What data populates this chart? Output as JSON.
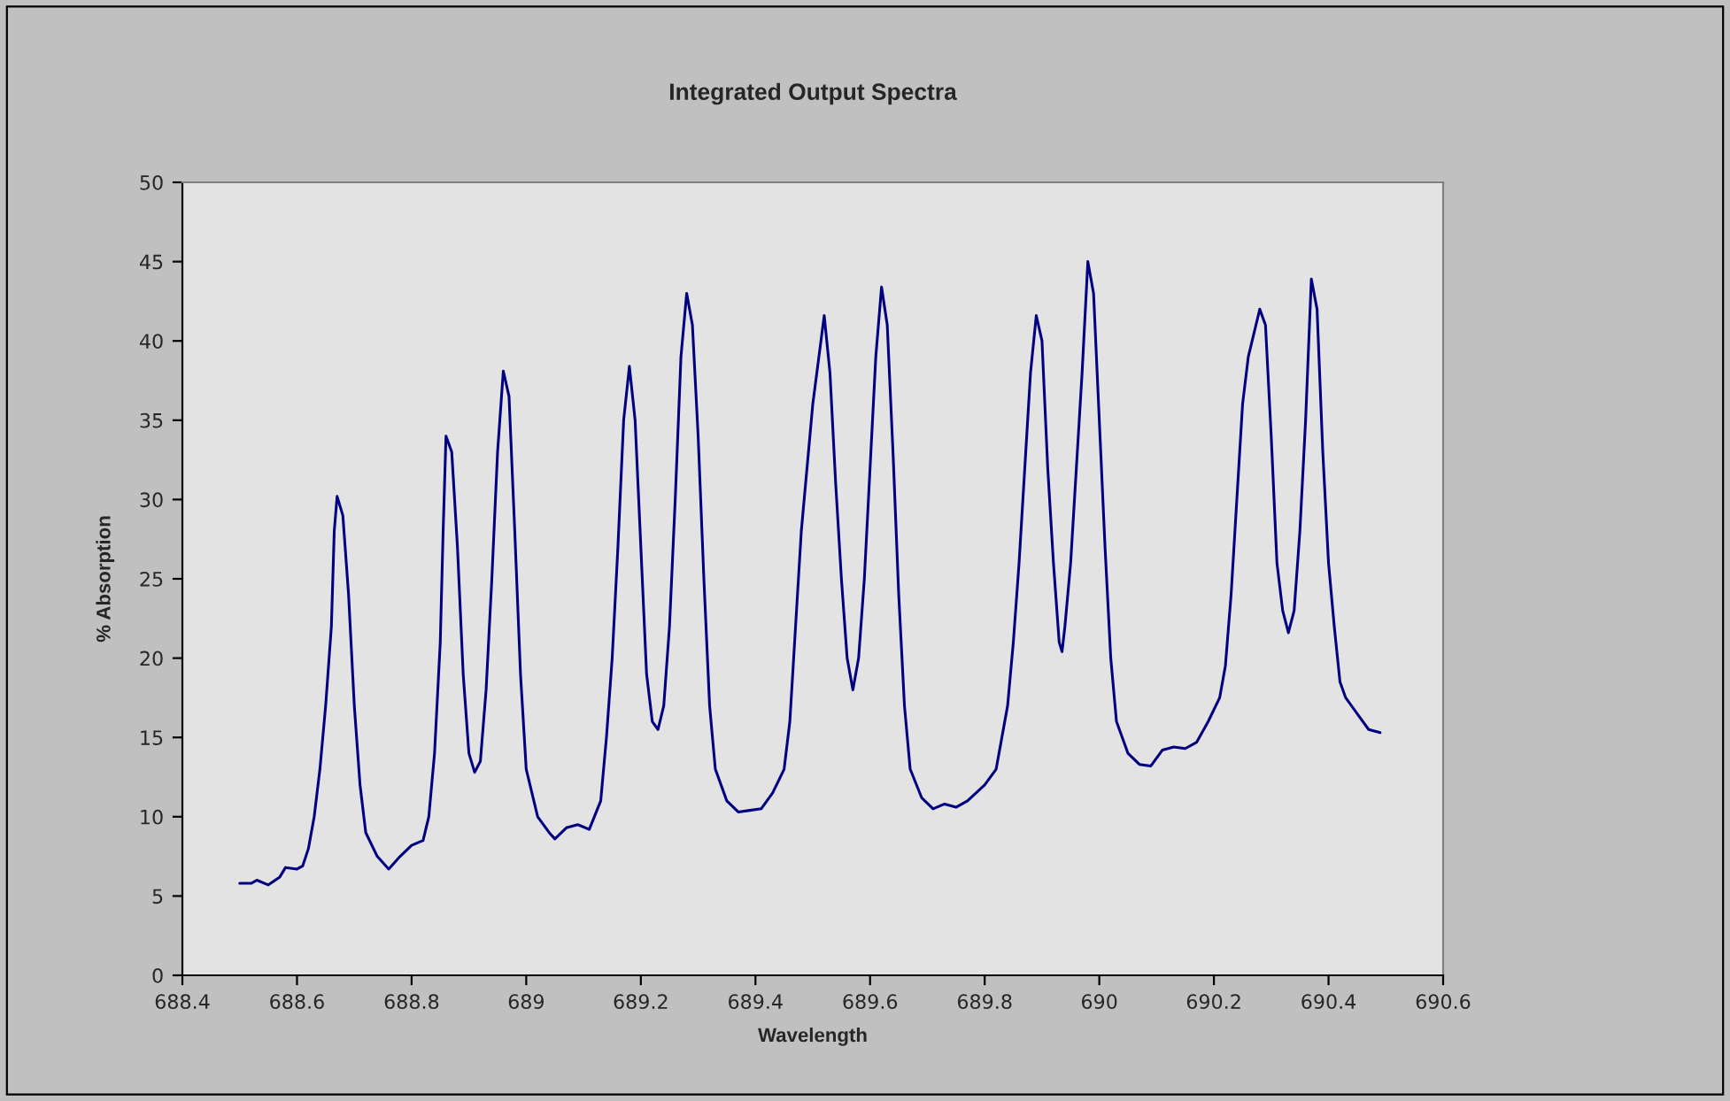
{
  "chart_data": {
    "type": "line",
    "title": "Integrated Output Spectra",
    "xlabel": "Wavelength",
    "ylabel": "% Absorption",
    "x": [
      688.5,
      688.52,
      688.53,
      688.55,
      688.57,
      688.58,
      688.6,
      688.61,
      688.62,
      688.63,
      688.64,
      688.65,
      688.66,
      688.665,
      688.67,
      688.68,
      688.69,
      688.7,
      688.71,
      688.72,
      688.74,
      688.76,
      688.78,
      688.8,
      688.82,
      688.83,
      688.84,
      688.85,
      688.855,
      688.86,
      688.87,
      688.88,
      688.89,
      688.9,
      688.91,
      688.92,
      688.93,
      688.94,
      688.95,
      688.96,
      688.97,
      688.98,
      688.99,
      689.0,
      689.02,
      689.04,
      689.05,
      689.07,
      689.09,
      689.11,
      689.13,
      689.14,
      689.15,
      689.16,
      689.17,
      689.18,
      689.19,
      689.2,
      689.21,
      689.22,
      689.23,
      689.24,
      689.25,
      689.26,
      689.27,
      689.28,
      689.29,
      689.3,
      689.31,
      689.32,
      689.33,
      689.35,
      689.37,
      689.39,
      689.41,
      689.43,
      689.45,
      689.46,
      689.47,
      689.48,
      689.5,
      689.52,
      689.53,
      689.54,
      689.55,
      689.56,
      689.57,
      689.58,
      689.59,
      689.6,
      689.61,
      689.62,
      689.63,
      689.64,
      689.65,
      689.66,
      689.67,
      689.69,
      689.71,
      689.73,
      689.75,
      689.77,
      689.8,
      689.82,
      689.84,
      689.85,
      689.86,
      689.87,
      689.88,
      689.89,
      689.9,
      689.91,
      689.92,
      689.93,
      689.935,
      689.94,
      689.95,
      689.96,
      689.97,
      689.98,
      689.99,
      690.0,
      690.01,
      690.02,
      690.03,
      690.05,
      690.07,
      690.09,
      690.11,
      690.13,
      690.15,
      690.17,
      690.19,
      690.21,
      690.22,
      690.23,
      690.24,
      690.25,
      690.26,
      690.28,
      690.29,
      690.3,
      690.31,
      690.32,
      690.33,
      690.34,
      690.35,
      690.36,
      690.37,
      690.38,
      690.39,
      690.4,
      690.41,
      690.42,
      690.43,
      690.45,
      690.47,
      690.49
    ],
    "series": [
      {
        "color": "#000080",
        "values": [
          5.8,
          5.8,
          6.0,
          5.7,
          6.2,
          6.8,
          6.7,
          6.9,
          8.0,
          10,
          13,
          17,
          22,
          28,
          30.2,
          29,
          24,
          17,
          12,
          9,
          7.5,
          6.7,
          7.5,
          8.2,
          8.5,
          10,
          14,
          21,
          28,
          34,
          33,
          27,
          19,
          14,
          12.8,
          13.5,
          18,
          25,
          33,
          38.1,
          36.5,
          28,
          19,
          13,
          10,
          9,
          8.6,
          9.3,
          9.5,
          9.2,
          11,
          15,
          20,
          27,
          35,
          38.4,
          35,
          27,
          19,
          16,
          15.5,
          17,
          22,
          30,
          39,
          43,
          41,
          34,
          25,
          17,
          13,
          11,
          10.3,
          10.4,
          10.5,
          11.5,
          13,
          16,
          22,
          28,
          36,
          41.6,
          38,
          31,
          25,
          20,
          18,
          20,
          25,
          32,
          39,
          43.4,
          41,
          33,
          24,
          17,
          13,
          11.2,
          10.5,
          10.8,
          10.6,
          11,
          12,
          13,
          17,
          21,
          26,
          32,
          38,
          41.6,
          40,
          32,
          26,
          21,
          20.4,
          22,
          26,
          32,
          38,
          45,
          43,
          35,
          27,
          20,
          16,
          14,
          13.3,
          13.2,
          14.2,
          14.4,
          14.3,
          14.7,
          16,
          17.5,
          19.5,
          24,
          30,
          36,
          39,
          42,
          41,
          34,
          26,
          23,
          21.6,
          23,
          28,
          35,
          43.9,
          42,
          33,
          26,
          22,
          18.5,
          17.5,
          16.5,
          15.5,
          15.3
        ]
      }
    ],
    "xlim": [
      688.4,
      690.6
    ],
    "xticks": [
      688.4,
      688.6,
      688.8,
      {
        "value": 689,
        "label": "689"
      },
      689.2,
      689.4,
      689.6,
      689.8,
      {
        "value": 690,
        "label": "690"
      },
      690.2,
      690.4,
      690.6
    ],
    "ylim": [
      0,
      50
    ],
    "yticks": [
      0,
      5,
      10,
      15,
      20,
      25,
      30,
      35,
      40,
      45,
      50
    ],
    "grid": false,
    "marker": "none",
    "line_style": "solid"
  }
}
